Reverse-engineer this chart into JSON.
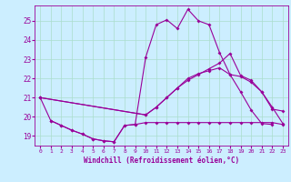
{
  "xlabel": "Windchill (Refroidissement éolien,°C)",
  "bg_color": "#cceeff",
  "grid_color": "#aaddcc",
  "line_color": "#990099",
  "xlim": [
    -0.5,
    23.5
  ],
  "ylim": [
    18.5,
    25.8
  ],
  "yticks": [
    19,
    20,
    21,
    22,
    23,
    24,
    25
  ],
  "xticks": [
    0,
    1,
    2,
    3,
    4,
    5,
    6,
    7,
    8,
    9,
    10,
    11,
    12,
    13,
    14,
    15,
    16,
    17,
    18,
    19,
    20,
    21,
    22,
    23
  ],
  "curve1_x": [
    0,
    1,
    2,
    3,
    4,
    5,
    6,
    7,
    8,
    9,
    10,
    11,
    12,
    13,
    14,
    15,
    16,
    17,
    18,
    19,
    20,
    21,
    22
  ],
  "curve1_y": [
    21.0,
    19.8,
    19.55,
    19.3,
    19.1,
    18.85,
    18.75,
    18.7,
    19.55,
    19.6,
    23.1,
    24.8,
    25.05,
    24.6,
    25.6,
    25.0,
    24.8,
    23.35,
    22.2,
    21.3,
    20.35,
    19.65,
    19.6
  ],
  "curve2_x": [
    1,
    2,
    3,
    4,
    5,
    6,
    7,
    8,
    9,
    10,
    11,
    12,
    13,
    14,
    15,
    16,
    17,
    18,
    19,
    20,
    21,
    22,
    23
  ],
  "curve2_y": [
    19.8,
    19.55,
    19.3,
    19.1,
    18.85,
    18.75,
    18.7,
    19.55,
    19.6,
    19.7,
    19.7,
    19.7,
    19.7,
    19.7,
    19.7,
    19.7,
    19.7,
    19.7,
    19.7,
    19.7,
    19.7,
    19.7,
    19.6
  ],
  "curve3_x": [
    0,
    10,
    11,
    12,
    13,
    14,
    15,
    16,
    17,
    18,
    19,
    20,
    21,
    22,
    23
  ],
  "curve3_y": [
    21.0,
    20.1,
    20.5,
    21.0,
    21.5,
    21.9,
    22.2,
    22.5,
    22.8,
    23.3,
    22.15,
    21.9,
    21.3,
    20.4,
    20.3
  ],
  "curve4_x": [
    0,
    10,
    11,
    12,
    13,
    14,
    15,
    16,
    17,
    18,
    19,
    20,
    21,
    22,
    23
  ],
  "curve4_y": [
    21.0,
    20.1,
    20.5,
    21.0,
    21.5,
    22.0,
    22.25,
    22.4,
    22.55,
    22.2,
    22.1,
    21.8,
    21.3,
    20.5,
    19.65
  ]
}
